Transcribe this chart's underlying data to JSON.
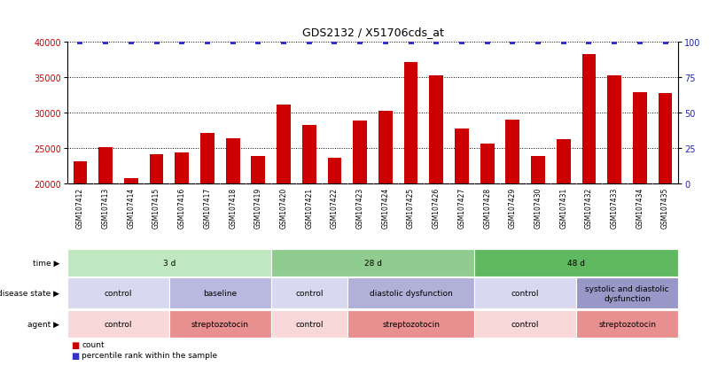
{
  "title": "GDS2132 / X51706cds_at",
  "samples": [
    "GSM107412",
    "GSM107413",
    "GSM107414",
    "GSM107415",
    "GSM107416",
    "GSM107417",
    "GSM107418",
    "GSM107419",
    "GSM107420",
    "GSM107421",
    "GSM107422",
    "GSM107423",
    "GSM107424",
    "GSM107425",
    "GSM107426",
    "GSM107427",
    "GSM107428",
    "GSM107429",
    "GSM107430",
    "GSM107431",
    "GSM107432",
    "GSM107433",
    "GSM107434",
    "GSM107435"
  ],
  "counts": [
    23200,
    25100,
    20800,
    24200,
    24400,
    27100,
    26400,
    23900,
    31100,
    28200,
    23700,
    28900,
    30300,
    37100,
    35200,
    27700,
    25600,
    29000,
    23900,
    26200,
    38200,
    35200,
    32800,
    32700
  ],
  "bar_color": "#cc0000",
  "dot_color": "#3333cc",
  "ylim_left": [
    20000,
    40000
  ],
  "ylim_right": [
    0,
    100
  ],
  "yticks_left": [
    20000,
    25000,
    30000,
    35000,
    40000
  ],
  "yticks_right": [
    0,
    25,
    50,
    75,
    100
  ],
  "grid_lines": [
    25000,
    30000,
    35000,
    40000
  ],
  "background_color": "#ffffff",
  "xticklabel_bg": "#d8d8d8",
  "time_row": {
    "label": "time",
    "groups": [
      {
        "text": "3 d",
        "start": 0,
        "end": 7,
        "color": "#c0e8c0"
      },
      {
        "text": "28 d",
        "start": 8,
        "end": 15,
        "color": "#90cc90"
      },
      {
        "text": "48 d",
        "start": 16,
        "end": 23,
        "color": "#60b860"
      }
    ]
  },
  "disease_row": {
    "label": "disease state",
    "groups": [
      {
        "text": "control",
        "start": 0,
        "end": 3,
        "color": "#d8d8f0"
      },
      {
        "text": "baseline",
        "start": 4,
        "end": 7,
        "color": "#b8b8e0"
      },
      {
        "text": "control",
        "start": 8,
        "end": 10,
        "color": "#d8d8f0"
      },
      {
        "text": "diastolic dysfunction",
        "start": 11,
        "end": 15,
        "color": "#b0b0d8"
      },
      {
        "text": "control",
        "start": 16,
        "end": 19,
        "color": "#d8d8f0"
      },
      {
        "text": "systolic and diastolic\ndysfunction",
        "start": 20,
        "end": 23,
        "color": "#9898c8"
      }
    ]
  },
  "agent_row": {
    "label": "agent",
    "groups": [
      {
        "text": "control",
        "start": 0,
        "end": 3,
        "color": "#f8d8d8"
      },
      {
        "text": "streptozotocin",
        "start": 4,
        "end": 7,
        "color": "#e89090"
      },
      {
        "text": "control",
        "start": 8,
        "end": 10,
        "color": "#f8d8d8"
      },
      {
        "text": "streptozotocin",
        "start": 11,
        "end": 15,
        "color": "#e89090"
      },
      {
        "text": "control",
        "start": 16,
        "end": 19,
        "color": "#f8d8d8"
      },
      {
        "text": "streptozotocin",
        "start": 20,
        "end": 23,
        "color": "#e89090"
      }
    ]
  }
}
